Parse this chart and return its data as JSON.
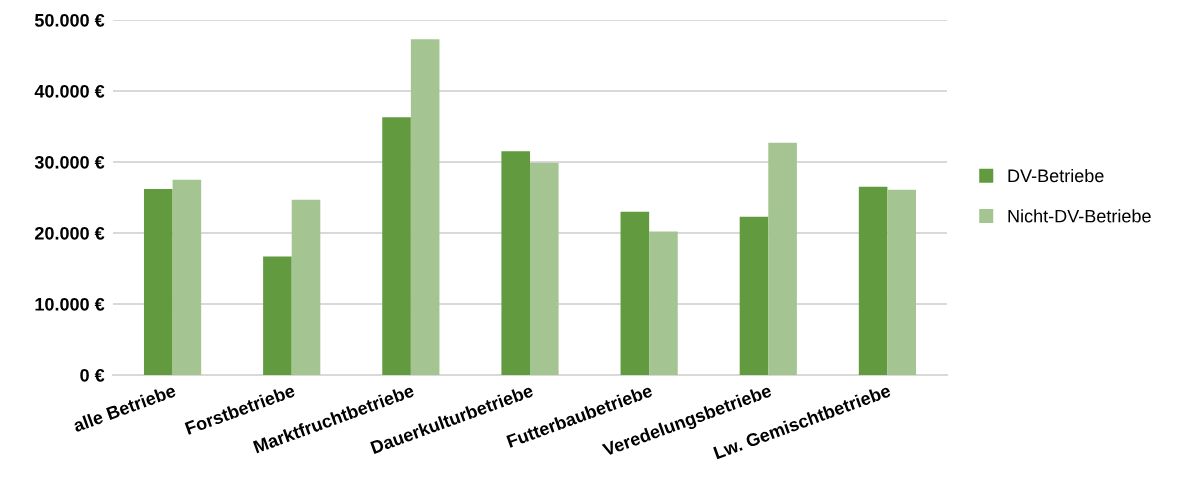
{
  "chart_data": {
    "type": "bar",
    "categories": [
      "alle Betriebe",
      "Forstbetriebe",
      "Marktfruchtbetriebe",
      "Dauerkulturbetriebe",
      "Futterbaubetriebe",
      "Veredelungsbetriebe",
      "Lw. Gemischtbetriebe"
    ],
    "series": [
      {
        "name": "DV-Betriebe",
        "color": "#629a3f",
        "values": [
          26200,
          16700,
          36300,
          31500,
          23000,
          22300,
          26500
        ]
      },
      {
        "name": "Nicht-DV-Betriebe",
        "color": "#a4c591",
        "values": [
          27500,
          24700,
          47300,
          29900,
          20200,
          32700,
          26100
        ]
      }
    ],
    "ylim": [
      0,
      50000
    ],
    "yticks": [
      {
        "value": 0,
        "label": "0 €"
      },
      {
        "value": 10000,
        "label": "10.000 €"
      },
      {
        "value": 20000,
        "label": "20.000 €"
      },
      {
        "value": 30000,
        "label": "30.000 €"
      },
      {
        "value": 40000,
        "label": "40.000 €"
      },
      {
        "value": 50000,
        "label": "50.000 €"
      }
    ],
    "grid": "y",
    "legend": "right"
  }
}
